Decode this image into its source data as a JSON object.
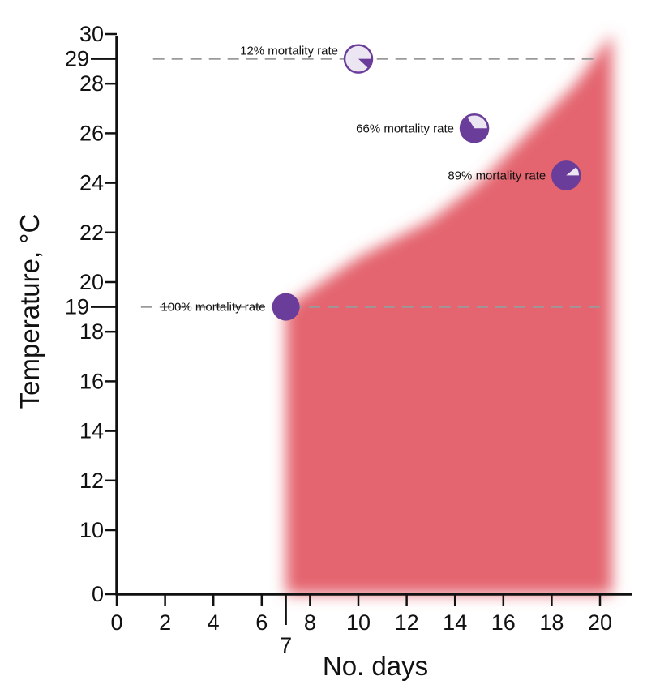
{
  "chart_data": {
    "type": "scatter",
    "title": "",
    "xlabel": "No. days",
    "ylabel": "Temperature, °C",
    "xlim": [
      0,
      21.5
    ],
    "ylim": [
      0,
      30
    ],
    "grid": false,
    "x_ticks": [
      "0",
      "2",
      "4",
      "6",
      "7",
      "8",
      "10",
      "12",
      "14",
      "16",
      "18",
      "20"
    ],
    "y_ticks": [
      "0",
      "10",
      "12",
      "14",
      "16",
      "18",
      "19",
      "20",
      "22",
      "24",
      "26",
      "28",
      "29",
      "30"
    ],
    "reference_lines": [
      {
        "y": 29,
        "x_from": 1.5,
        "x_to": 20
      },
      {
        "y": 19,
        "x_from": 1,
        "x_to": 20
      }
    ],
    "points": [
      {
        "x": 10,
        "y": 29,
        "mortality": 0.12,
        "label": "12% mortality rate"
      },
      {
        "x": 14.8,
        "y": 26.2,
        "mortality": 0.66,
        "label": "66% mortality rate"
      },
      {
        "x": 18.6,
        "y": 24.3,
        "mortality": 0.89,
        "label": "89% mortality rate"
      },
      {
        "x": 7,
        "y": 19,
        "mortality": 1.0,
        "label": "100% mortality rate"
      }
    ],
    "region": {
      "description_points": [
        [
          7,
          0
        ],
        [
          7,
          19
        ],
        [
          10,
          21
        ],
        [
          13,
          22.5
        ],
        [
          15,
          24
        ],
        [
          17,
          26
        ],
        [
          19,
          28
        ],
        [
          20.5,
          30
        ],
        [
          20.5,
          0
        ]
      ]
    },
    "colors": {
      "region": "#e35d67",
      "point_fill": "#6a3d9a",
      "point_light": "#ece6f3",
      "reference_line": "#9a9a9a",
      "axis": "#111111"
    }
  }
}
